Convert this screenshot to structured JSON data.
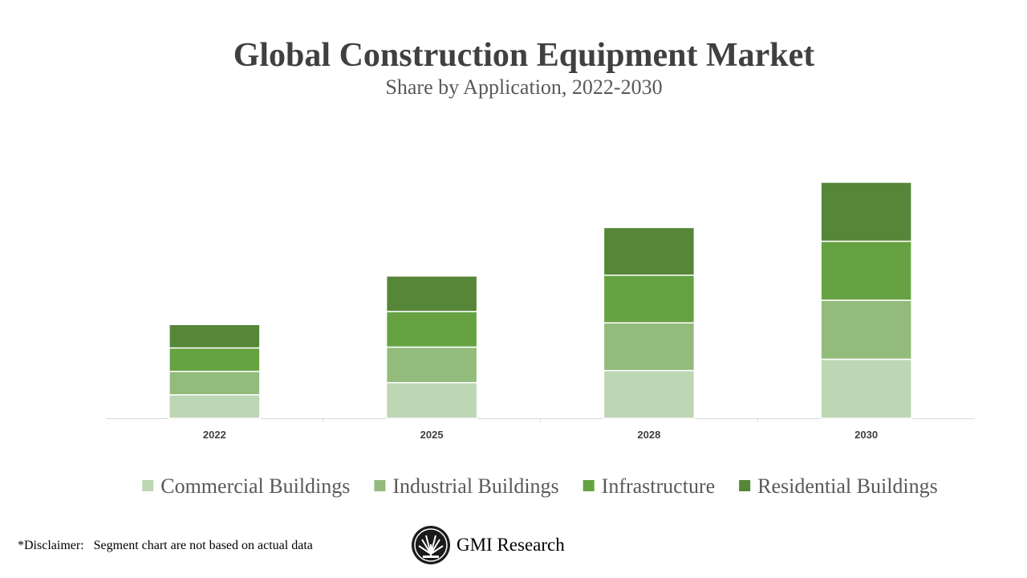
{
  "chart_data": {
    "type": "stacked_bar",
    "title": "Global Construction Equipment Market",
    "subtitle": "Share by Application, 2022-2030",
    "categories": [
      "2022",
      "2025",
      "2028",
      "2030"
    ],
    "series": [
      {
        "name": "Commercial Buildings",
        "color": "#bdd6b4",
        "values": [
          29,
          44,
          59,
          73
        ]
      },
      {
        "name": "Industrial Buildings",
        "color": "#93bb7c",
        "values": [
          29,
          44,
          59,
          73
        ]
      },
      {
        "name": "Infrastructure",
        "color": "#66a241",
        "values": [
          29,
          44,
          59,
          73
        ]
      },
      {
        "name": "Residential Buildings",
        "color": "#568638",
        "values": [
          29,
          44,
          59,
          73
        ]
      }
    ],
    "legend": "bottom"
  },
  "footer": {
    "disclaimer": "*Disclaimer:   Segment chart are not based on actual data",
    "brand": "GMI Research"
  }
}
